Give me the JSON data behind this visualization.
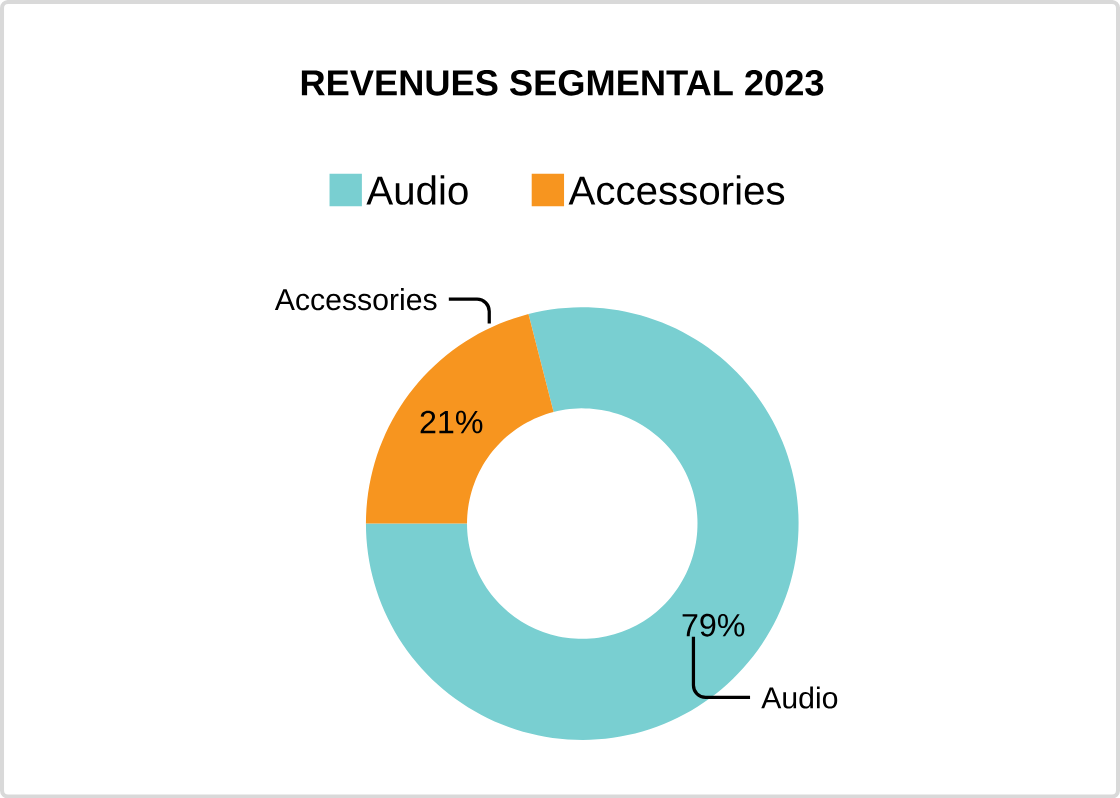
{
  "chart_data": {
    "type": "donut",
    "title": "REVENUES SEGMENTAL 2023",
    "categories": [
      "Audio",
      "Accessories"
    ],
    "values": [
      79,
      21
    ],
    "colors": [
      "#79cfd1",
      "#f7951f"
    ],
    "value_labels": [
      "79%",
      "21%"
    ],
    "legend": "top"
  }
}
